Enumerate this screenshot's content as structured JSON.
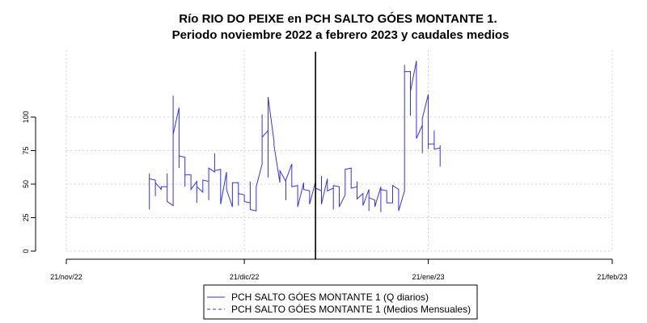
{
  "chart_data": {
    "type": "line",
    "title": "Río RIO DO PEIXE en PCH SALTO GÓES MONTANTE 1.",
    "subtitle": "Periodo noviembre 2022 a febrero 2023 y caudales medios",
    "xlabel": "",
    "ylabel": "",
    "x_ticks": [
      "21/nov/22",
      "21/dic/22",
      "21/ene/23",
      "21/feb/23"
    ],
    "y_ticks": [
      0,
      25,
      50,
      75,
      100
    ],
    "ylim": [
      0,
      150
    ],
    "xlim": [
      "2022-11-21",
      "2023-02-21"
    ],
    "grid": true,
    "vertical_marker": "2023-01-02",
    "legend": {
      "position": "bottom-center",
      "entries": [
        {
          "label": "PCH SALTO GÓES MONTANTE 1 (Q diarios)",
          "style": "solid",
          "color": "#3333ee"
        },
        {
          "label": "PCH SALTO GÓES MONTANTE 1 (Medios Mensuales)",
          "style": "dashed",
          "color": "#3333ee"
        }
      ]
    },
    "series": [
      {
        "name": "PCH SALTO GÓES MONTANTE 1 (Q diarios)",
        "color": "#3333ee",
        "points": [
          [
            "2022-12-05",
            31
          ],
          [
            "2022-12-05",
            58
          ],
          [
            "2022-12-05",
            54
          ],
          [
            "2022-12-06",
            53
          ],
          [
            "2022-12-06",
            41
          ],
          [
            "2022-12-06",
            51
          ],
          [
            "2022-12-07",
            46
          ],
          [
            "2022-12-07",
            48
          ],
          [
            "2022-12-08",
            48
          ],
          [
            "2022-12-08",
            58
          ],
          [
            "2022-12-08",
            37
          ],
          [
            "2022-12-09",
            34
          ],
          [
            "2022-12-09",
            85
          ],
          [
            "2022-12-09",
            116
          ],
          [
            "2022-12-09",
            87
          ],
          [
            "2022-12-10",
            107
          ],
          [
            "2022-12-10",
            62
          ],
          [
            "2022-12-10",
            71
          ],
          [
            "2022-12-11",
            70
          ],
          [
            "2022-12-11",
            48
          ],
          [
            "2022-12-11",
            57
          ],
          [
            "2022-12-12",
            57
          ],
          [
            "2022-12-12",
            46
          ],
          [
            "2022-12-13",
            52
          ],
          [
            "2022-12-13",
            36
          ],
          [
            "2022-12-13",
            48
          ],
          [
            "2022-12-14",
            44
          ],
          [
            "2022-12-14",
            53
          ],
          [
            "2022-12-15",
            52
          ],
          [
            "2022-12-15",
            38
          ],
          [
            "2022-12-15",
            62
          ],
          [
            "2022-12-16",
            59
          ],
          [
            "2022-12-16",
            73
          ],
          [
            "2022-12-16",
            60
          ],
          [
            "2022-12-17",
            61
          ],
          [
            "2022-12-17",
            35
          ],
          [
            "2022-12-18",
            59
          ],
          [
            "2022-12-18",
            52
          ],
          [
            "2022-12-18",
            46
          ],
          [
            "2022-12-19",
            33
          ],
          [
            "2022-12-19",
            51
          ],
          [
            "2022-12-20",
            51
          ],
          [
            "2022-12-20",
            34
          ],
          [
            "2022-12-20",
            43
          ],
          [
            "2022-12-21",
            42
          ],
          [
            "2022-12-21",
            37
          ],
          [
            "2022-12-22",
            36
          ],
          [
            "2022-12-22",
            52
          ],
          [
            "2022-12-22",
            31
          ],
          [
            "2022-12-23",
            30
          ],
          [
            "2022-12-23",
            48
          ],
          [
            "2022-12-24",
            65
          ],
          [
            "2022-12-24",
            102
          ],
          [
            "2022-12-24",
            85
          ],
          [
            "2022-12-25",
            90
          ],
          [
            "2022-12-25",
            55
          ],
          [
            "2022-12-25",
            115
          ],
          [
            "2022-12-26",
            82
          ],
          [
            "2022-12-26",
            79
          ],
          [
            "2022-12-27",
            51
          ],
          [
            "2022-12-27",
            60
          ],
          [
            "2022-12-28",
            52
          ],
          [
            "2022-12-28",
            38
          ],
          [
            "2022-12-28",
            53
          ],
          [
            "2022-12-29",
            65
          ],
          [
            "2022-12-29",
            48
          ],
          [
            "2022-12-30",
            49
          ],
          [
            "2022-12-30",
            33
          ],
          [
            "2022-12-31",
            51
          ],
          [
            "2022-12-31",
            46
          ],
          [
            "2023-01-01",
            45
          ],
          [
            "2023-01-01",
            35
          ],
          [
            "2023-01-02",
            52
          ],
          [
            "2023-01-02",
            47
          ],
          [
            "2023-01-03",
            45
          ],
          [
            "2023-01-03",
            56
          ],
          [
            "2023-01-03",
            35
          ],
          [
            "2023-01-04",
            54
          ],
          [
            "2023-01-04",
            45
          ],
          [
            "2023-01-05",
            47
          ],
          [
            "2023-01-05",
            31
          ],
          [
            "2023-01-05",
            49
          ],
          [
            "2023-01-06",
            48
          ],
          [
            "2023-01-06",
            33
          ],
          [
            "2023-01-07",
            42
          ],
          [
            "2023-01-07",
            53
          ],
          [
            "2023-01-07",
            61
          ],
          [
            "2023-01-08",
            62
          ],
          [
            "2023-01-08",
            47
          ],
          [
            "2023-01-09",
            48
          ],
          [
            "2023-01-09",
            52
          ],
          [
            "2023-01-09",
            39
          ],
          [
            "2023-01-10",
            43
          ],
          [
            "2023-01-10",
            34
          ],
          [
            "2023-01-11",
            46
          ],
          [
            "2023-01-11",
            30
          ],
          [
            "2023-01-11",
            40
          ],
          [
            "2023-01-12",
            38
          ],
          [
            "2023-01-12",
            33
          ],
          [
            "2023-01-13",
            48
          ],
          [
            "2023-01-13",
            29
          ],
          [
            "2023-01-13",
            46
          ],
          [
            "2023-01-14",
            45
          ],
          [
            "2023-01-14",
            36
          ],
          [
            "2023-01-15",
            36
          ],
          [
            "2023-01-15",
            49
          ],
          [
            "2023-01-16",
            46
          ],
          [
            "2023-01-16",
            30
          ],
          [
            "2023-01-17",
            45
          ],
          [
            "2023-01-17",
            139
          ],
          [
            "2023-01-17",
            134
          ],
          [
            "2023-01-18",
            134
          ],
          [
            "2023-01-18",
            101
          ],
          [
            "2023-01-18",
            119
          ],
          [
            "2023-01-19",
            142
          ],
          [
            "2023-01-19",
            120
          ],
          [
            "2023-01-19",
            84
          ],
          [
            "2023-01-20",
            94
          ],
          [
            "2023-01-20",
            73
          ],
          [
            "2023-01-20",
            99
          ],
          [
            "2023-01-21",
            117
          ],
          [
            "2023-01-21",
            76
          ],
          [
            "2023-01-21",
            80
          ],
          [
            "2023-01-22",
            80
          ],
          [
            "2023-01-22",
            90
          ],
          [
            "2023-01-22",
            76
          ],
          [
            "2023-01-23",
            77
          ],
          [
            "2023-01-23",
            63
          ],
          [
            "2023-01-23",
            79
          ]
        ]
      }
    ]
  }
}
